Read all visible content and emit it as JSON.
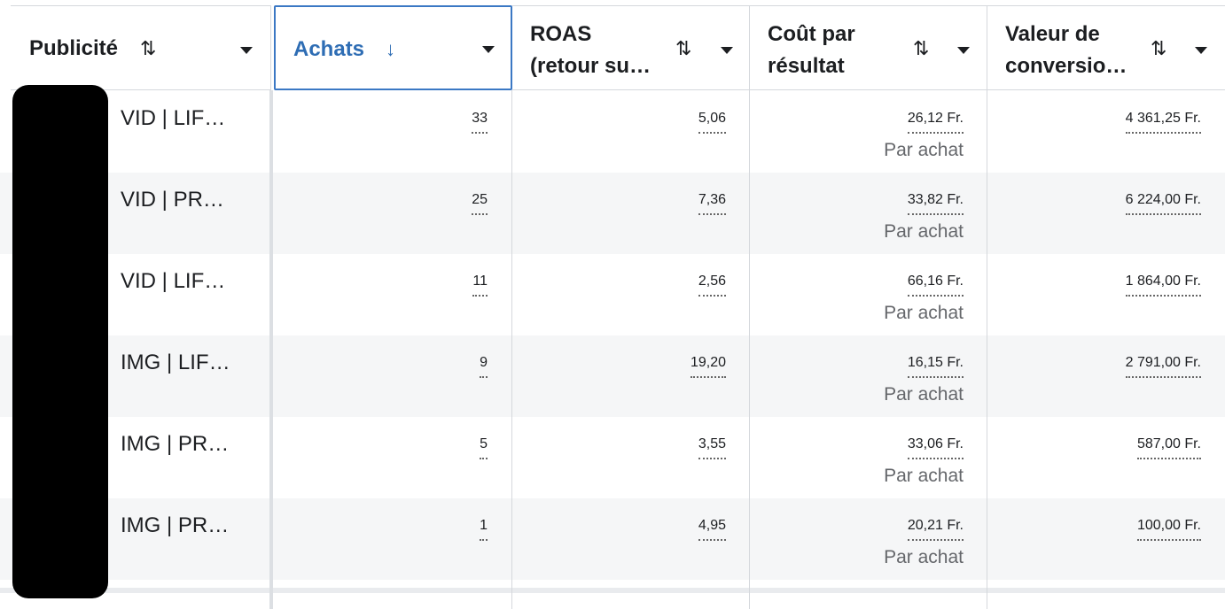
{
  "columns": [
    {
      "label": "Publicité",
      "sort_icon": "sort-both-arrows-icon"
    },
    {
      "label": "Achats",
      "sort_icon": "sort-down-arrow-icon"
    },
    {
      "label_line1": "ROAS",
      "label_line2": "(retour su…",
      "sort_icon": "sort-both-arrows-icon"
    },
    {
      "label_line1": "Coût par",
      "label_line2": "résultat",
      "sort_icon": "sort-both-arrows-icon"
    },
    {
      "label_line1": "Valeur de",
      "label_line2": "conversio…",
      "sort_icon": "sort-both-arrows-icon"
    }
  ],
  "icons": {
    "sort_both": "⇅",
    "sort_down": "↓"
  },
  "accent_color": "#2e6db4",
  "rows": [
    {
      "ad": "VID | LIF…",
      "achats": "33",
      "roas": "5,06",
      "cout": "26,12 Fr.",
      "cout_sub": "Par achat",
      "valeur": "4 361,25 Fr."
    },
    {
      "ad": "VID | PR…",
      "achats": "25",
      "roas": "7,36",
      "cout": "33,82 Fr.",
      "cout_sub": "Par achat",
      "valeur": "6 224,00 Fr."
    },
    {
      "ad": "VID | LIF…",
      "achats": "11",
      "roas": "2,56",
      "cout": "66,16 Fr.",
      "cout_sub": "Par achat",
      "valeur": "1 864,00 Fr."
    },
    {
      "ad": "IMG | LIF…",
      "achats": "9",
      "roas": "19,20",
      "cout": "16,15 Fr.",
      "cout_sub": "Par achat",
      "valeur": "2 791,00 Fr."
    },
    {
      "ad": "IMG | PR…",
      "achats": "5",
      "roas": "3,55",
      "cout": "33,06 Fr.",
      "cout_sub": "Par achat",
      "valeur": "587,00 Fr."
    },
    {
      "ad": "IMG | PR…",
      "achats": "1",
      "roas": "4,95",
      "cout": "20,21 Fr.",
      "cout_sub": "Par achat",
      "valeur": "100,00 Fr."
    }
  ]
}
